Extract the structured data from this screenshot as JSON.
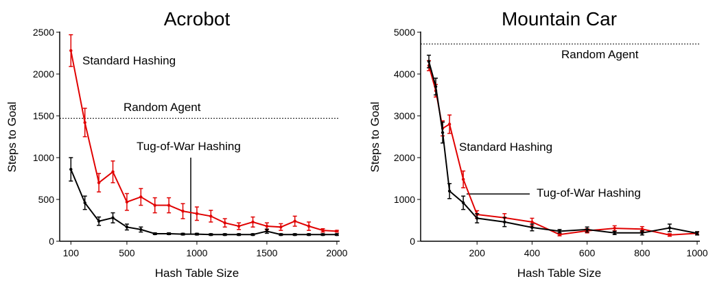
{
  "chart_data": [
    {
      "type": "line",
      "title": "Acrobot",
      "xlabel": "Hash Table Size",
      "ylabel": "Steps to Goal",
      "xlim": [
        20,
        2020
      ],
      "ylim": [
        0,
        2500
      ],
      "xticks": [
        100,
        500,
        1000,
        1500,
        2000
      ],
      "yticks": [
        0,
        500,
        1000,
        1500,
        2000,
        2500
      ],
      "grid": false,
      "baseline": {
        "label": "Random Agent",
        "value": 1470
      },
      "series": [
        {
          "name": "Standard Hashing",
          "color": "#e00000",
          "x": [
            100,
            200,
            300,
            400,
            500,
            600,
            700,
            800,
            900,
            1000,
            1100,
            1200,
            1300,
            1400,
            1500,
            1600,
            1700,
            1800,
            1900,
            2000
          ],
          "y": [
            2280,
            1420,
            700,
            830,
            470,
            530,
            430,
            430,
            360,
            330,
            300,
            220,
            180,
            230,
            180,
            170,
            240,
            180,
            130,
            120
          ],
          "err": [
            190,
            170,
            110,
            130,
            100,
            100,
            90,
            90,
            90,
            80,
            70,
            50,
            40,
            60,
            40,
            40,
            60,
            50,
            20,
            10
          ]
        },
        {
          "name": "Tug-of-War Hashing",
          "color": "#000000",
          "x": [
            100,
            200,
            300,
            400,
            500,
            600,
            700,
            800,
            900,
            1000,
            1100,
            1200,
            1300,
            1400,
            1500,
            1600,
            1700,
            1800,
            1900,
            2000
          ],
          "y": [
            860,
            460,
            240,
            280,
            170,
            140,
            90,
            90,
            85,
            85,
            80,
            80,
            80,
            80,
            120,
            80,
            80,
            80,
            80,
            80
          ],
          "err": [
            140,
            80,
            50,
            60,
            35,
            30,
            10,
            10,
            10,
            10,
            10,
            10,
            10,
            10,
            25,
            10,
            10,
            10,
            10,
            10
          ]
        }
      ],
      "annotations": [
        {
          "text": "Standard Hashing",
          "series": "Standard Hashing"
        },
        {
          "text": "Tug-of-War Hashing",
          "series": "Tug-of-War Hashing"
        }
      ]
    },
    {
      "type": "line",
      "title": "Mountain Car",
      "xlabel": "Hash Table Size",
      "ylabel": "Steps to Goal",
      "xlim": [
        -5,
        1010
      ],
      "ylim": [
        0,
        5000
      ],
      "xticks": [
        200,
        400,
        600,
        800,
        1000
      ],
      "yticks": [
        0,
        1000,
        2000,
        3000,
        4000,
        5000
      ],
      "grid": false,
      "baseline": {
        "label": "Random Agent",
        "value": 4720
      },
      "series": [
        {
          "name": "Standard Hashing",
          "color": "#e00000",
          "x": [
            25,
            50,
            75,
            100,
            150,
            200,
            300,
            400,
            500,
            600,
            700,
            800,
            900,
            1000
          ],
          "y": [
            4200,
            3600,
            2700,
            2800,
            1480,
            640,
            560,
            460,
            160,
            250,
            310,
            290,
            150,
            190
          ],
          "err": [
            120,
            150,
            180,
            220,
            200,
            90,
            100,
            90,
            30,
            50,
            60,
            60,
            30,
            30
          ]
        },
        {
          "name": "Tug-of-War Hashing",
          "color": "#000000",
          "x": [
            25,
            50,
            75,
            100,
            150,
            200,
            300,
            400,
            500,
            600,
            700,
            800,
            900,
            1000
          ],
          "y": [
            4300,
            3700,
            2600,
            1200,
            920,
            550,
            460,
            330,
            240,
            280,
            200,
            200,
            320,
            190
          ],
          "err": [
            150,
            200,
            250,
            180,
            160,
            110,
            110,
            80,
            40,
            60,
            40,
            50,
            90,
            40
          ]
        }
      ],
      "annotations": [
        {
          "text": "Standard Hashing",
          "series": "Standard Hashing"
        },
        {
          "text": "Tug-of-War Hashing",
          "series": "Tug-of-War Hashing"
        }
      ]
    }
  ]
}
